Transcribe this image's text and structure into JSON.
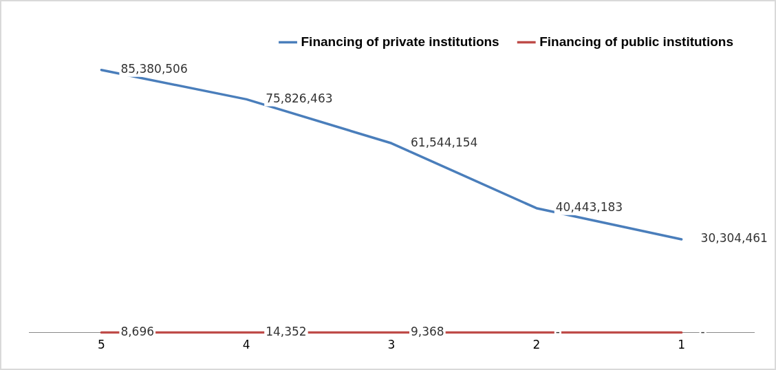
{
  "chart_data": {
    "type": "line",
    "categories": [
      "5",
      "4",
      "3",
      "2",
      "1"
    ],
    "series": [
      {
        "name": "Financing of private institutions",
        "color": "#4a7ebb",
        "values": [
          85380506,
          75826463,
          61544154,
          40443183,
          30304461
        ],
        "value_labels": [
          "85,380,506",
          "75,826,463",
          "61,544,154",
          "40,443,183",
          "30,304,461"
        ]
      },
      {
        "name": "Financing of public institutions",
        "color": "#be4b48",
        "values": [
          8696,
          14352,
          9368,
          0,
          0
        ],
        "value_labels": [
          "8,696",
          "14,352",
          "9,368",
          "-",
          "-"
        ]
      }
    ],
    "legend": "top right",
    "marker": "none",
    "line_style": "solid",
    "grid": false,
    "tick_labels": "x"
  }
}
